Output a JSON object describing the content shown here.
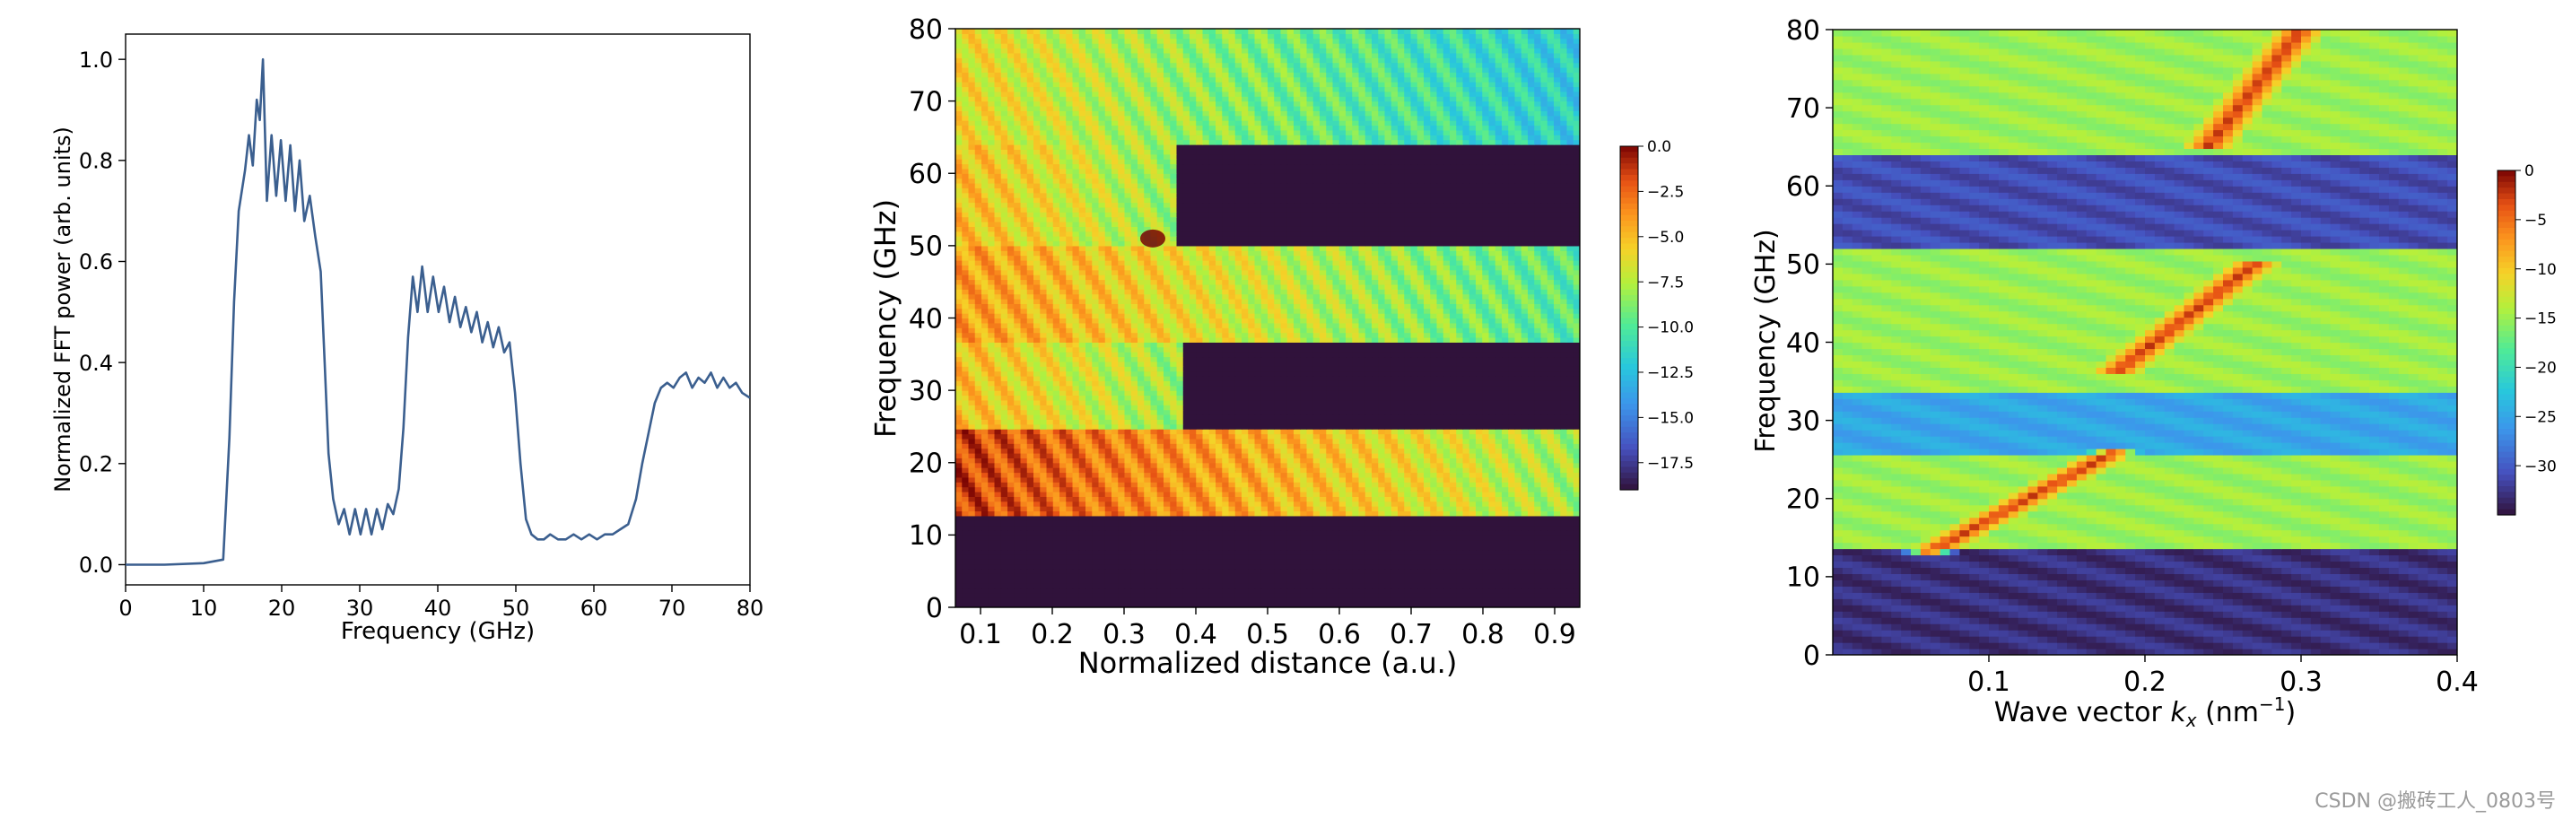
{
  "chart_data": [
    {
      "type": "line",
      "xlabel": "Frequency (GHz)",
      "ylabel": "Normalized FFT power (arb. units)",
      "xlim": [
        0,
        80
      ],
      "ylim": [
        -0.04,
        1.05
      ],
      "xticks": [
        0,
        10,
        20,
        30,
        40,
        50,
        60,
        70,
        80
      ],
      "yticks": [
        0.0,
        0.2,
        0.4,
        0.6,
        0.8,
        1.0
      ],
      "xtick_labels": [
        "0",
        "10",
        "20",
        "30",
        "40",
        "50",
        "60",
        "70",
        "80"
      ],
      "ytick_labels": [
        "0.0",
        "0.2",
        "0.4",
        "0.6",
        "0.8",
        "1.0"
      ],
      "line_color": "#3b5f8f",
      "series": [
        {
          "x": [
            0,
            5,
            10,
            12.5,
            13.3,
            13.9,
            14.5,
            15.3,
            15.8,
            16.3,
            16.8,
            17.2,
            17.6,
            18.1,
            18.7,
            19.3,
            19.9,
            20.5,
            21.1,
            21.7,
            22.3,
            22.9,
            23.6,
            24.3,
            25.0,
            25.5,
            26.0,
            26.6,
            27.3,
            28.0,
            28.7,
            29.4,
            30.1,
            30.8,
            31.5,
            32.2,
            32.9,
            33.6,
            34.3,
            35.0,
            35.6,
            36.2,
            36.8,
            37.4,
            38.0,
            38.7,
            39.4,
            40.1,
            40.8,
            41.5,
            42.2,
            42.9,
            43.6,
            44.3,
            45.0,
            45.7,
            46.4,
            47.1,
            47.8,
            48.5,
            49.2,
            49.9,
            50.6,
            51.3,
            52.0,
            52.8,
            53.6,
            54.4,
            55.4,
            56.4,
            57.4,
            58.4,
            59.4,
            60.4,
            61.4,
            62.4,
            63.4,
            64.4,
            65.4,
            66.2,
            67.0,
            67.8,
            68.6,
            69.4,
            70.2,
            71.0,
            71.8,
            72.6,
            73.4,
            74.2,
            75.0,
            75.8,
            76.6,
            77.4,
            78.2,
            79.0,
            80
          ],
          "y": [
            0.0,
            0.0,
            0.003,
            0.01,
            0.25,
            0.52,
            0.7,
            0.78,
            0.85,
            0.79,
            0.92,
            0.88,
            1.0,
            0.72,
            0.85,
            0.73,
            0.84,
            0.72,
            0.83,
            0.7,
            0.8,
            0.68,
            0.73,
            0.65,
            0.58,
            0.4,
            0.22,
            0.13,
            0.08,
            0.11,
            0.06,
            0.11,
            0.06,
            0.11,
            0.06,
            0.11,
            0.07,
            0.12,
            0.1,
            0.15,
            0.27,
            0.45,
            0.57,
            0.5,
            0.59,
            0.5,
            0.57,
            0.5,
            0.55,
            0.48,
            0.53,
            0.47,
            0.51,
            0.46,
            0.5,
            0.44,
            0.48,
            0.43,
            0.47,
            0.42,
            0.44,
            0.34,
            0.2,
            0.09,
            0.06,
            0.05,
            0.05,
            0.06,
            0.05,
            0.05,
            0.06,
            0.05,
            0.06,
            0.05,
            0.06,
            0.06,
            0.07,
            0.08,
            0.13,
            0.2,
            0.26,
            0.32,
            0.35,
            0.36,
            0.35,
            0.37,
            0.38,
            0.35,
            0.37,
            0.36,
            0.38,
            0.35,
            0.37,
            0.35,
            0.36,
            0.34,
            0.33
          ]
        }
      ]
    },
    {
      "type": "heatmap",
      "xlabel": "Normalized distance (a.u.)",
      "ylabel": "Frequency (GHz)",
      "xlim": [
        0.065,
        0.935
      ],
      "ylim": [
        0,
        80
      ],
      "xticks": [
        0.1,
        0.2,
        0.3,
        0.4,
        0.5,
        0.6,
        0.7,
        0.8,
        0.9
      ],
      "yticks": [
        0,
        10,
        20,
        30,
        40,
        50,
        60,
        70,
        80
      ],
      "xtick_labels": [
        "0.1",
        "0.2",
        "0.3",
        "0.4",
        "0.5",
        "0.6",
        "0.7",
        "0.8",
        "0.9"
      ],
      "ytick_labels": [
        "0",
        "10",
        "20",
        "30",
        "40",
        "50",
        "60",
        "70",
        "80"
      ],
      "colorbar": {
        "range": [
          -19,
          0
        ],
        "ticks": [
          0.0,
          -2.5,
          -5.0,
          -7.5,
          -10.0,
          -12.5,
          -15.0,
          -17.5
        ],
        "tick_labels": [
          "0.0",
          "−2.5",
          "−5.0",
          "−7.5",
          "−10.0",
          "−12.5",
          "−15.0",
          "−17.5"
        ]
      },
      "bands": [
        {
          "fmin": 0,
          "fmax": 13,
          "level": -19
        },
        {
          "fmin": 13,
          "fmax": 25,
          "level_near": -1.5,
          "level_far": -8
        },
        {
          "fmin": 25,
          "fmax": 37,
          "level_near": -5,
          "level_far": -19,
          "cutoff_x": 0.36
        },
        {
          "fmin": 37,
          "fmax": 50,
          "level_near": -4,
          "level_far": -10
        },
        {
          "fmin": 50,
          "fmax": 64,
          "level_near": -5,
          "level_far": -19,
          "cutoff_x": 0.35
        },
        {
          "fmin": 64,
          "fmax": 80,
          "level_near": -6,
          "level_far": -12
        }
      ],
      "annotations": [
        {
          "x": 0.34,
          "y": 51,
          "level": 0,
          "label": ""
        }
      ]
    },
    {
      "type": "heatmap",
      "xlabel": "Wave vector k_x (nm⁻¹)",
      "xlabel_parts": [
        "Wave vector ",
        "k",
        "x",
        " (nm",
        "−1",
        ")"
      ],
      "ylabel": "Frequency (GHz)",
      "xlim": [
        0.0,
        0.4
      ],
      "ylim": [
        0,
        80
      ],
      "xticks": [
        0.1,
        0.2,
        0.3,
        0.4
      ],
      "yticks": [
        0,
        10,
        20,
        30,
        40,
        50,
        60,
        70,
        80
      ],
      "xtick_labels": [
        "0.1",
        "0.2",
        "0.3",
        "0.4"
      ],
      "ytick_labels": [
        "0",
        "10",
        "20",
        "30",
        "40",
        "50",
        "60",
        "70",
        "80"
      ],
      "colorbar": {
        "range": [
          -35,
          0
        ],
        "ticks": [
          0,
          -5,
          -10,
          -15,
          -20,
          -25,
          -30
        ],
        "tick_labels": [
          "0",
          "−5",
          "−10",
          "−15",
          "−20",
          "−25",
          "−30"
        ]
      },
      "bands": [
        {
          "fmin": 0,
          "fmax": 13.5,
          "level": -33
        },
        {
          "fmin": 13.5,
          "fmax": 26,
          "level": -15
        },
        {
          "fmin": 26,
          "fmax": 34,
          "level": -25
        },
        {
          "fmin": 34,
          "fmax": 52,
          "level": -15
        },
        {
          "fmin": 52,
          "fmax": 64,
          "level": -31
        },
        {
          "fmin": 64,
          "fmax": 80,
          "level": -15
        }
      ],
      "dispersion_branches": [
        {
          "k": [
            0.06,
            0.18
          ],
          "f": [
            13,
            26
          ],
          "level": -2
        },
        {
          "k": [
            0.18,
            0.27
          ],
          "f": [
            36,
            50
          ],
          "level": -2
        },
        {
          "k": [
            0.24,
            0.3
          ],
          "f": [
            65,
            80
          ],
          "level": -2
        }
      ]
    }
  ],
  "footer": {
    "watermark": "CSDN @搬砖工人_0803号"
  }
}
